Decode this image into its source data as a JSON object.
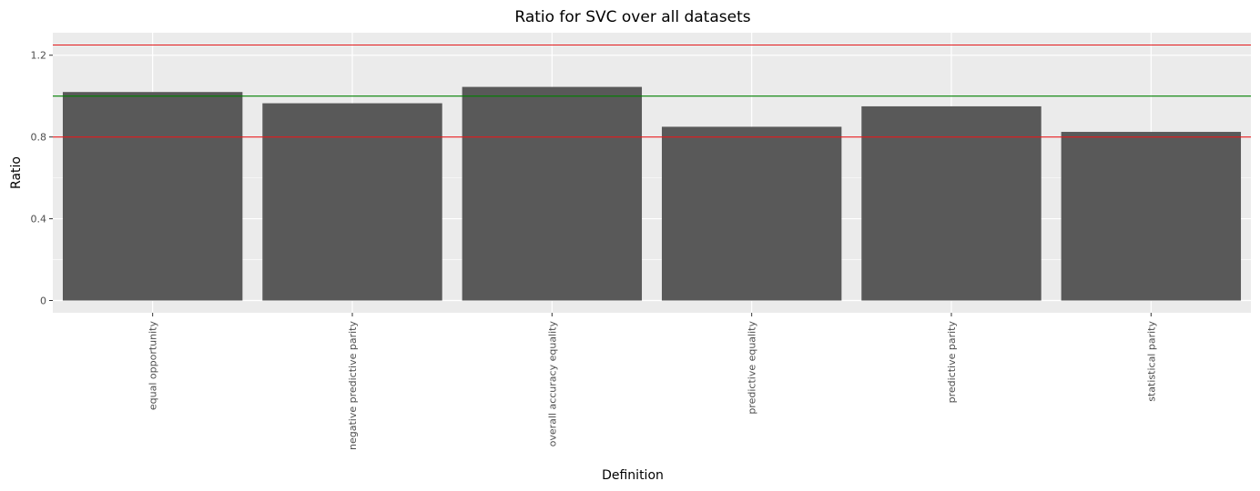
{
  "chart_data": {
    "type": "bar",
    "title": "Ratio for SVC over all datasets",
    "xlabel": "Definition",
    "ylabel": "Ratio",
    "categories": [
      "equal opportunity",
      "negative predictive parity",
      "overall accuracy equality",
      "predictive equality",
      "predictive parity",
      "statistical parity"
    ],
    "values": [
      1.02,
      0.965,
      1.045,
      0.85,
      0.95,
      0.825
    ],
    "ylim": [
      -0.06,
      1.31
    ],
    "yticks": [
      0,
      0.4,
      0.8,
      1.2
    ],
    "ytick_labels": [
      "0",
      "0.4",
      "0.8",
      "1.2"
    ],
    "grid": true,
    "reference_lines": [
      {
        "y": 1.25,
        "color": "#e41a1c"
      },
      {
        "y": 1.0,
        "color": "#008000"
      },
      {
        "y": 0.8,
        "color": "#e41a1c"
      }
    ],
    "bar_color": "#595959",
    "panel_color": "#ebebeb"
  }
}
